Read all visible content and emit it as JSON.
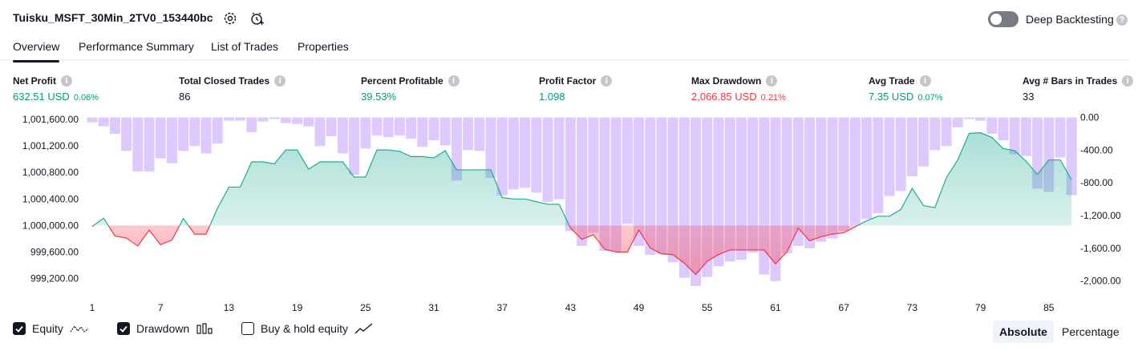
{
  "header": {
    "title": "Tuisku_MSFT_30Min_2TV0_153440bc",
    "deep_backtesting_label": "Deep Backtesting",
    "deep_backtesting_enabled": false,
    "help_glyph": "?"
  },
  "tabs": [
    {
      "label": "Overview",
      "active": true
    },
    {
      "label": "Performance Summary",
      "active": false
    },
    {
      "label": "List of Trades",
      "active": false
    },
    {
      "label": "Properties",
      "active": false
    }
  ],
  "metrics": [
    {
      "label": "Net Profit",
      "value": "632.51 USD",
      "pct": "0.06%",
      "color": "green"
    },
    {
      "label": "Total Closed Trades",
      "value": "86",
      "pct": "",
      "color": "dark"
    },
    {
      "label": "Percent Profitable",
      "value": "39.53%",
      "pct": "",
      "color": "green"
    },
    {
      "label": "Profit Factor",
      "value": "1.098",
      "pct": "",
      "color": "green"
    },
    {
      "label": "Max Drawdown",
      "value": "2,066.85 USD",
      "pct": "0.21%",
      "color": "red"
    },
    {
      "label": "Avg Trade",
      "value": "7.35 USD",
      "pct": "0.07%",
      "color": "green"
    },
    {
      "label": "Avg # Bars in Trades",
      "value": "33",
      "pct": "",
      "color": "dark"
    }
  ],
  "chart_data": {
    "type": "line",
    "equity_baseline": 1000000,
    "left_axis": {
      "range": [
        999000,
        1001650
      ],
      "ticks": [
        1001600,
        1001200,
        1000800,
        1000400,
        1000000,
        999600,
        999200
      ],
      "tick_labels": [
        "1,001,600.00",
        "1,001,200.00",
        "1,000,800.00",
        "1,000,400.00",
        "1,000,000.00",
        "999,600.00",
        "999,200.00"
      ]
    },
    "right_axis": {
      "range": [
        -2130,
        15
      ],
      "ticks": [
        0,
        -400,
        -800,
        -1200,
        -1600,
        -2000
      ],
      "tick_labels": [
        "0.00",
        "-400.00",
        "-800.00",
        "-1,200.00",
        "-1,600.00",
        "-2,000.00"
      ]
    },
    "x_ticks": [
      1,
      7,
      13,
      19,
      25,
      31,
      37,
      43,
      49,
      55,
      61,
      67,
      73,
      79,
      85
    ],
    "equity": [
      999985,
      1000110,
      999840,
      999810,
      999690,
      999930,
      999710,
      999780,
      1000105,
      999870,
      999870,
      1000260,
      1000580,
      1000580,
      1000960,
      1000960,
      1000930,
      1001140,
      1001140,
      1000850,
      1000960,
      1000960,
      1000960,
      1000730,
      1000730,
      1001140,
      1001140,
      1001120,
      1001040,
      1001040,
      1001020,
      1001130,
      1000840,
      1000840,
      1000840,
      1000840,
      1000420,
      1000400,
      1000400,
      1000360,
      1000320,
      1000320,
      999960,
      999790,
      999860,
      999640,
      999600,
      999600,
      999930,
      999660,
      999570,
      999560,
      999430,
      999260,
      999460,
      999560,
      999630,
      999630,
      999630,
      999630,
      999420,
      999600,
      999960,
      999770,
      999830,
      999870,
      999890,
      999980,
      1000070,
      1000140,
      1000140,
      1000240,
      1000560,
      1000300,
      1000270,
      1000720,
      1000990,
      1001390,
      1001400,
      1001330,
      1001160,
      1001130,
      1000970,
      1000770,
      1000990,
      1000990,
      1000690
    ],
    "drawdown": [
      -60,
      -110,
      -200,
      -410,
      -660,
      -660,
      -500,
      -560,
      -410,
      -350,
      -440,
      -320,
      -40,
      -40,
      -180,
      -50,
      -20,
      -70,
      -80,
      -110,
      -350,
      -230,
      -440,
      -700,
      -380,
      -220,
      -240,
      -220,
      -260,
      -360,
      -280,
      -340,
      -770,
      -400,
      -410,
      -740,
      -950,
      -880,
      -860,
      -920,
      -1030,
      -1000,
      -1390,
      -1570,
      -1410,
      -1630,
      -1640,
      -1300,
      -1570,
      -1680,
      -1670,
      -1770,
      -1960,
      -2060,
      -1950,
      -1820,
      -1760,
      -1740,
      -1650,
      -1920,
      -2000,
      -1660,
      -1570,
      -1600,
      -1520,
      -1480,
      -1390,
      -1320,
      -1240,
      -1170,
      -960,
      -900,
      -720,
      -600,
      -400,
      -350,
      -120,
      -20,
      -40,
      -200,
      -280,
      -450,
      -470,
      -870,
      -910,
      -490,
      -950
    ]
  },
  "legend": [
    {
      "label": "Equity",
      "checked": true,
      "icon": "equity-line-icon"
    },
    {
      "label": "Drawdown",
      "checked": true,
      "icon": "drawdown-bars-icon"
    },
    {
      "label": "Buy & hold equity",
      "checked": false,
      "icon": "buy-hold-line-icon"
    }
  ],
  "view_mode": {
    "absolute_label": "Absolute",
    "percentage_label": "Percentage",
    "selected": "Absolute"
  }
}
